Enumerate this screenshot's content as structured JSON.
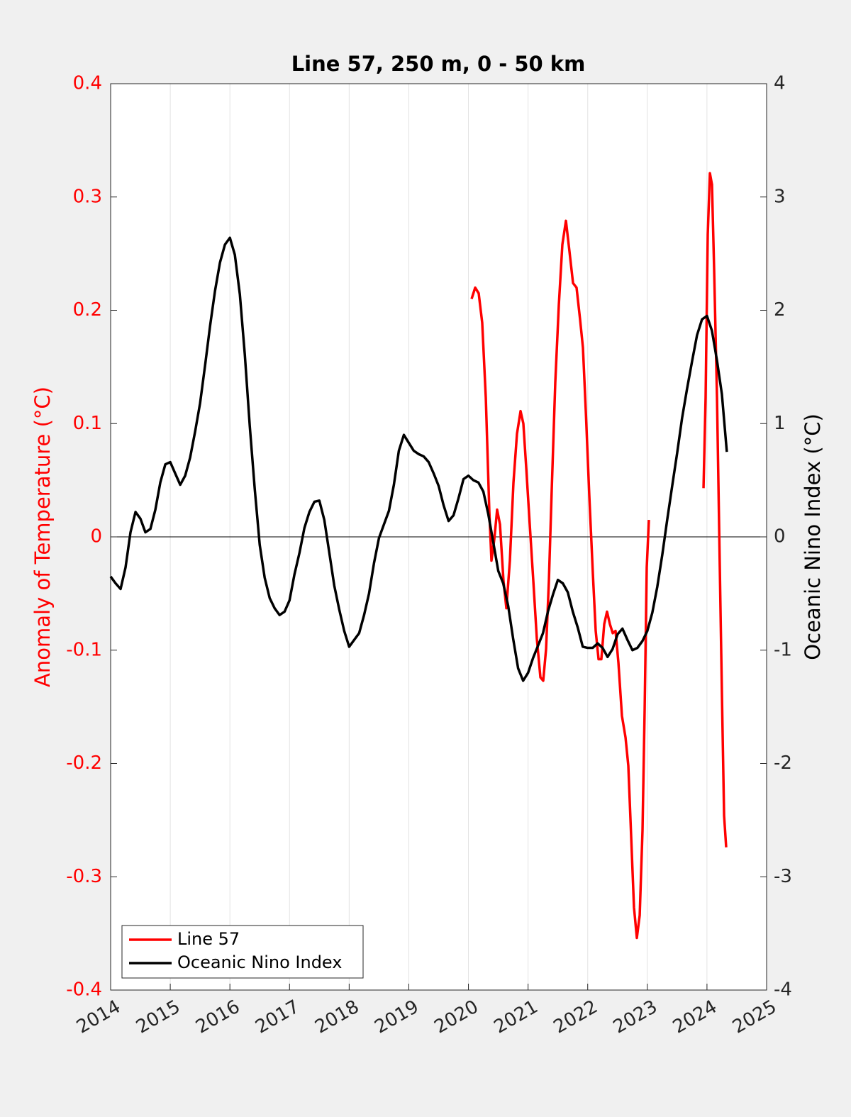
{
  "chart_data": {
    "type": "line",
    "title": "Line 57, 250 m, 0 - 50 km",
    "ylabel": "Anomaly of Temperature (°C)",
    "y2label": "Oceanic Nino Index (°C)",
    "xlim": [
      2014,
      2025
    ],
    "xticks": [
      2014,
      2015,
      2016,
      2017,
      2018,
      2019,
      2020,
      2021,
      2022,
      2023,
      2024,
      2025
    ],
    "ylim": [
      -0.4,
      0.4
    ],
    "yticks": [
      -0.4,
      -0.3,
      -0.2,
      -0.1,
      0,
      0.1,
      0.2,
      0.3,
      0.4
    ],
    "y2lim": [
      -4,
      4
    ],
    "y2ticks": [
      -4,
      -3,
      -2,
      -1,
      0,
      1,
      2,
      3,
      4
    ],
    "grid": "x",
    "legend": "lower left",
    "series": [
      {
        "name": "Line 57",
        "color": "#ff0000",
        "axis": "y",
        "x": [
          2020.053,
          2020.113,
          2020.172,
          2020.231,
          2020.291,
          2020.35,
          2020.386,
          2020.434,
          2020.481,
          2020.529,
          2020.588,
          2020.636,
          2020.695,
          2020.755,
          2020.814,
          2020.874,
          2020.921,
          2020.969,
          2021.028,
          2021.088,
          2021.147,
          2021.207,
          2021.254,
          2021.302,
          2021.349,
          2021.397,
          2021.456,
          2021.516,
          2021.575,
          2021.635,
          2021.694,
          2021.754,
          2021.813,
          2021.872,
          2021.92,
          2021.968,
          2022.027,
          2022.087,
          2022.134,
          2022.182,
          2022.229,
          2022.277,
          2022.324,
          2022.372,
          2022.42,
          2022.467,
          2022.515,
          2022.574,
          2022.634,
          2022.681,
          2022.729,
          2022.776,
          2022.824,
          2022.872,
          2022.919,
          2022.955,
          2022.99,
          2023.026,
          2023.5,
          2023.942,
          2023.977,
          2024.013,
          2024.049,
          2024.084,
          2024.12,
          2024.168,
          2024.215,
          2024.251,
          2024.287,
          2024.322
        ],
        "values": [
          0.21,
          0.22,
          0.215,
          0.189,
          0.123,
          0.023,
          -0.021,
          -0.002,
          0.024,
          0.011,
          -0.039,
          -0.063,
          -0.021,
          0.048,
          0.091,
          0.111,
          0.1,
          0.061,
          0.011,
          -0.039,
          -0.09,
          -0.124,
          -0.127,
          -0.099,
          -0.039,
          0.042,
          0.136,
          0.205,
          0.258,
          0.279,
          0.252,
          0.224,
          0.22,
          0.192,
          0.167,
          0.111,
          0.036,
          -0.033,
          -0.083,
          -0.108,
          -0.108,
          -0.077,
          -0.066,
          -0.077,
          -0.085,
          -0.083,
          -0.111,
          -0.158,
          -0.177,
          -0.202,
          -0.265,
          -0.327,
          -0.354,
          -0.334,
          -0.259,
          -0.152,
          -0.027,
          0.015,
          null,
          0.043,
          0.123,
          0.267,
          0.321,
          0.311,
          0.236,
          0.123,
          -0.027,
          -0.14,
          -0.246,
          -0.274
        ]
      },
      {
        "name": "Oceanic Nino Index",
        "color": "#000000",
        "axis": "y2",
        "x": [
          2014,
          2014.083,
          2014.167,
          2014.25,
          2014.333,
          2014.417,
          2014.5,
          2014.583,
          2014.667,
          2014.75,
          2014.833,
          2014.917,
          2015,
          2015.083,
          2015.167,
          2015.25,
          2015.333,
          2015.417,
          2015.5,
          2015.583,
          2015.667,
          2015.75,
          2015.833,
          2015.917,
          2016,
          2016.083,
          2016.167,
          2016.25,
          2016.333,
          2016.417,
          2016.5,
          2016.583,
          2016.667,
          2016.75,
          2016.833,
          2016.917,
          2017,
          2017.083,
          2017.167,
          2017.25,
          2017.333,
          2017.417,
          2017.5,
          2017.583,
          2017.667,
          2017.75,
          2017.833,
          2017.917,
          2018,
          2018.083,
          2018.167,
          2018.25,
          2018.333,
          2018.417,
          2018.5,
          2018.583,
          2018.667,
          2018.75,
          2018.833,
          2018.917,
          2019,
          2019.083,
          2019.167,
          2019.25,
          2019.333,
          2019.417,
          2019.5,
          2019.583,
          2019.667,
          2019.75,
          2019.833,
          2019.917,
          2020,
          2020.083,
          2020.167,
          2020.25,
          2020.333,
          2020.417,
          2020.5,
          2020.583,
          2020.667,
          2020.75,
          2020.833,
          2020.917,
          2021,
          2021.083,
          2021.167,
          2021.25,
          2021.333,
          2021.417,
          2021.5,
          2021.583,
          2021.667,
          2021.75,
          2021.833,
          2021.917,
          2022,
          2022.083,
          2022.167,
          2022.25,
          2022.333,
          2022.417,
          2022.5,
          2022.583,
          2022.667,
          2022.75,
          2022.833,
          2022.917,
          2023,
          2023.083,
          2023.167,
          2023.25,
          2023.333,
          2023.417,
          2023.5,
          2023.583,
          2023.667,
          2023.75,
          2023.833,
          2023.917,
          2024,
          2024.083,
          2024.167,
          2024.25,
          2024.333
        ],
        "values": [
          -0.35,
          -0.41,
          -0.46,
          -0.27,
          0.04,
          0.22,
          0.16,
          0.04,
          0.07,
          0.24,
          0.48,
          0.64,
          0.66,
          0.56,
          0.46,
          0.54,
          0.7,
          0.93,
          1.18,
          1.51,
          1.86,
          2.17,
          2.42,
          2.58,
          2.64,
          2.49,
          2.14,
          1.61,
          0.98,
          0.42,
          -0.07,
          -0.36,
          -0.54,
          -0.63,
          -0.69,
          -0.66,
          -0.56,
          -0.33,
          -0.14,
          0.08,
          0.22,
          0.31,
          0.32,
          0.15,
          -0.14,
          -0.43,
          -0.64,
          -0.83,
          -0.97,
          -0.91,
          -0.85,
          -0.69,
          -0.5,
          -0.23,
          -0.01,
          0.11,
          0.23,
          0.46,
          0.76,
          0.9,
          0.83,
          0.76,
          0.73,
          0.71,
          0.66,
          0.56,
          0.45,
          0.28,
          0.14,
          0.19,
          0.34,
          0.51,
          0.54,
          0.5,
          0.48,
          0.4,
          0.2,
          -0.05,
          -0.3,
          -0.41,
          -0.61,
          -0.9,
          -1.16,
          -1.27,
          -1.2,
          -1.07,
          -0.96,
          -0.85,
          -0.66,
          -0.51,
          -0.38,
          -0.41,
          -0.49,
          -0.66,
          -0.8,
          -0.97,
          -0.98,
          -0.98,
          -0.94,
          -0.98,
          -1.06,
          -0.99,
          -0.86,
          -0.81,
          -0.91,
          -1,
          -0.98,
          -0.92,
          -0.83,
          -0.67,
          -0.44,
          -0.16,
          0.15,
          0.45,
          0.74,
          1.05,
          1.31,
          1.55,
          1.78,
          1.92,
          1.95,
          1.82,
          1.56,
          1.26,
          0.75
        ]
      }
    ]
  }
}
